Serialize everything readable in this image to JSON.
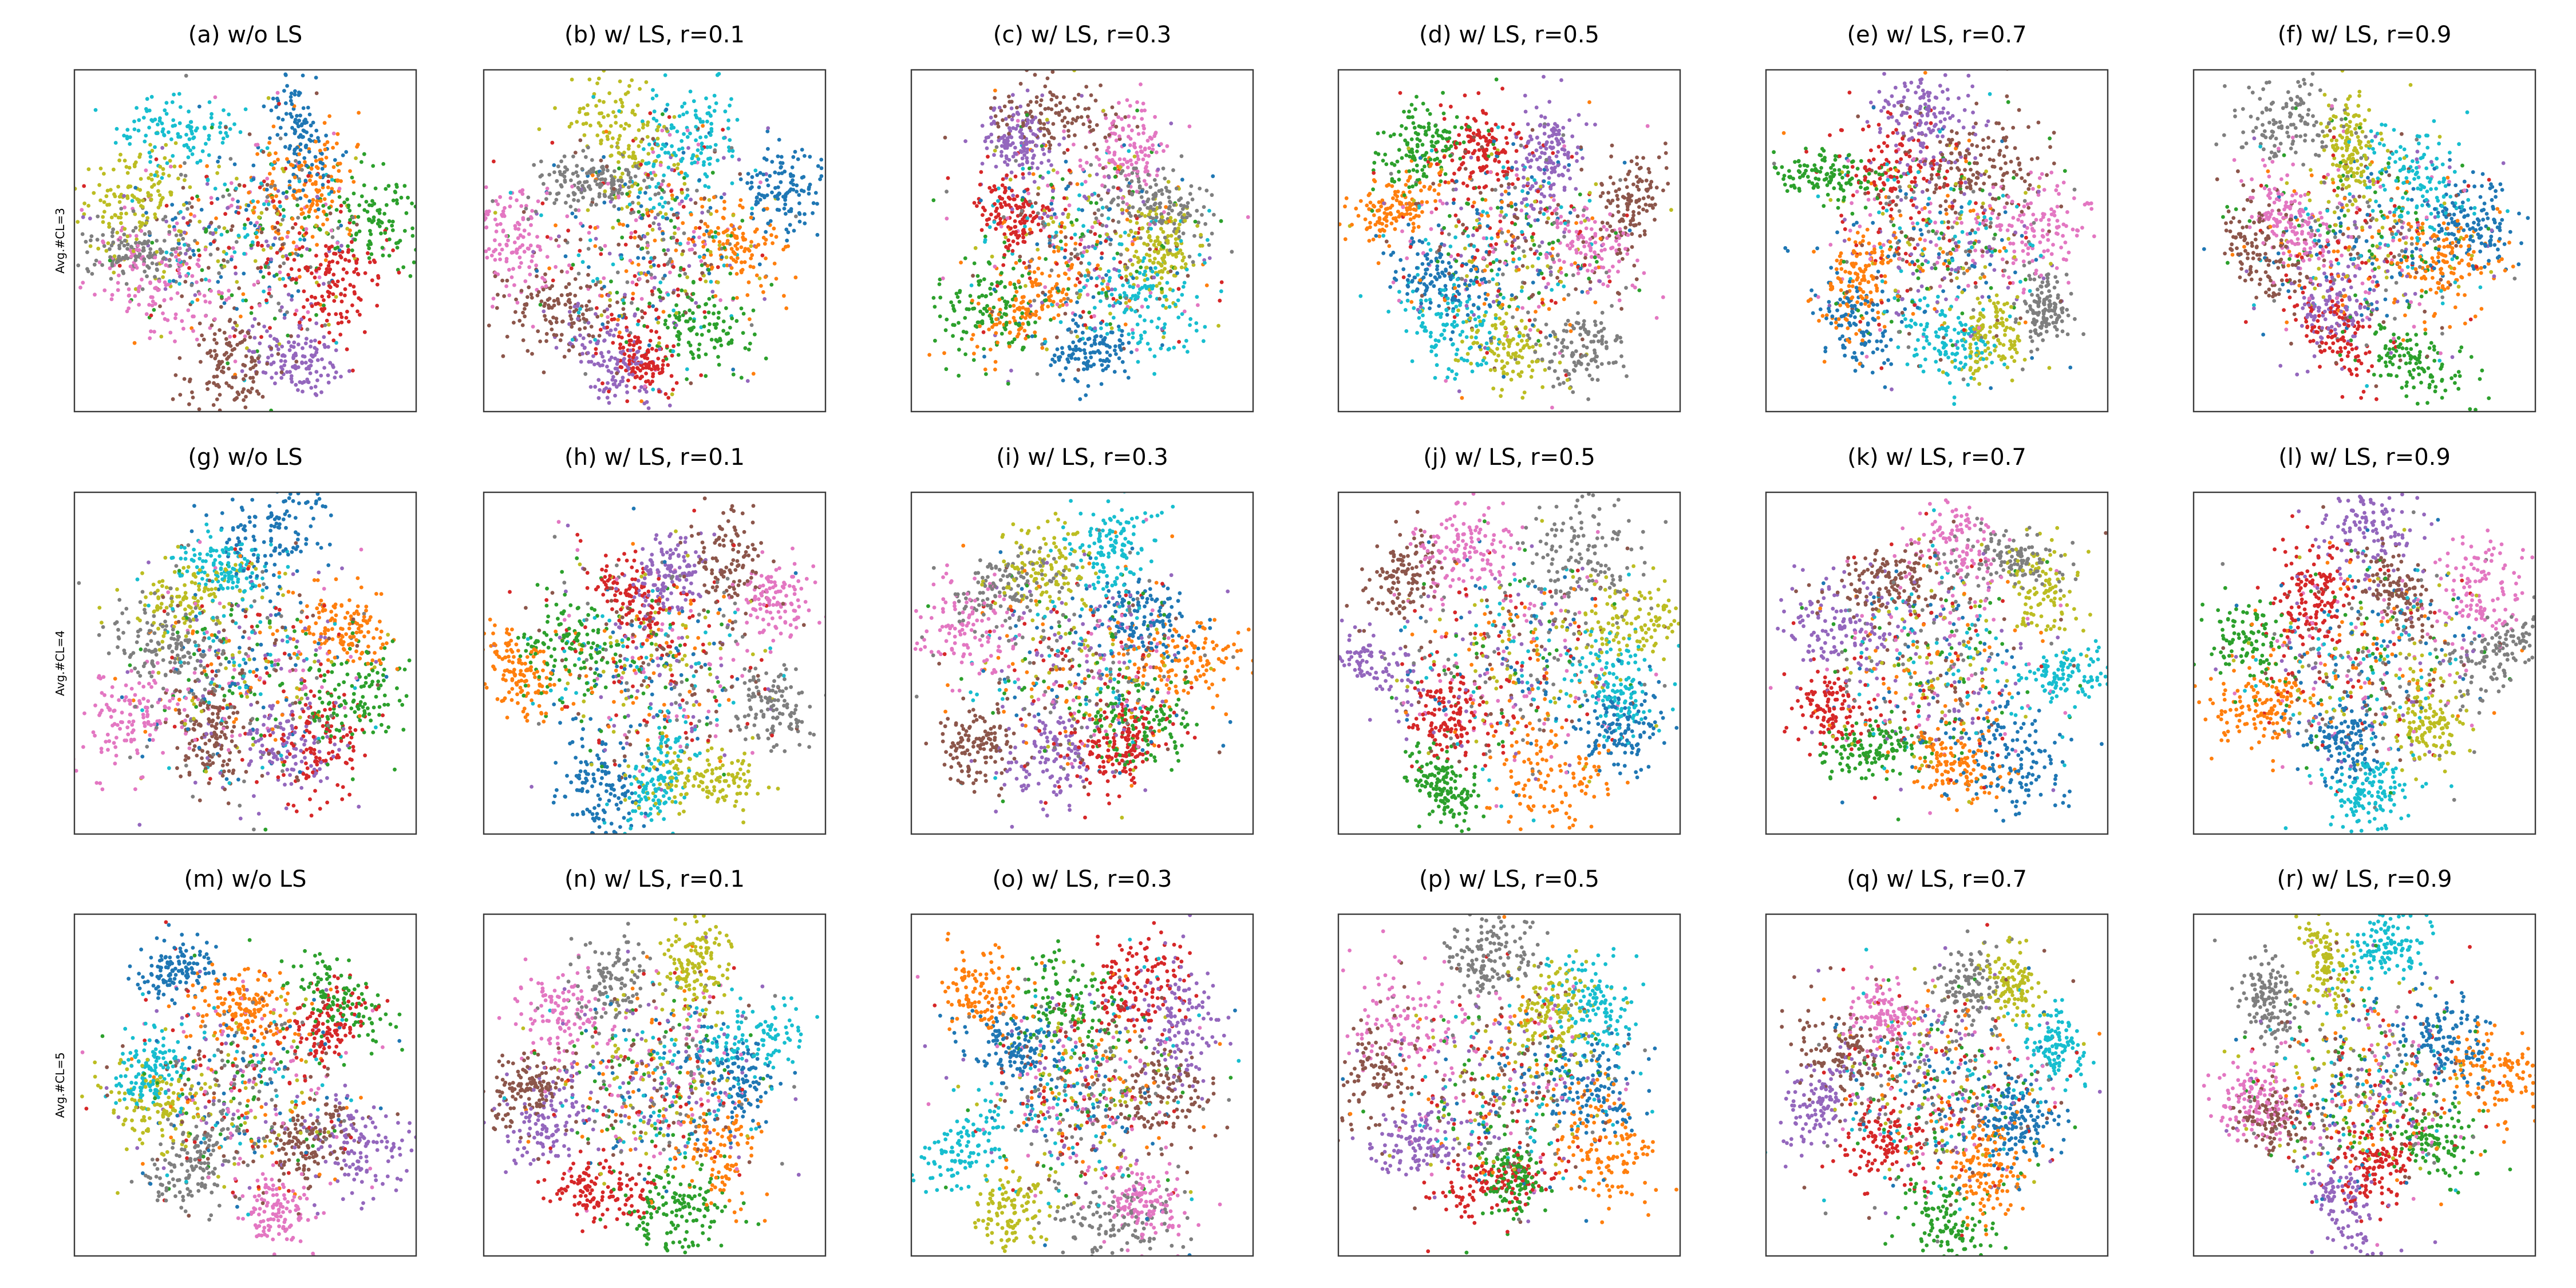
{
  "figure": {
    "row_labels": [
      "Avg.#CL=3",
      "Avg.#CL=4",
      "Avg.#CL=5"
    ],
    "column_settings": [
      "w/o LS",
      "w/ LS, r=0.1",
      "w/ LS, r=0.3",
      "w/ LS, r=0.5",
      "w/ LS, r=0.7",
      "w/ LS, r=0.9"
    ],
    "palette": [
      "#1f77b4",
      "#ff7f0e",
      "#2ca02c",
      "#d62728",
      "#9467bd",
      "#8c564b",
      "#e377c2",
      "#7f7f7f",
      "#bcbd22",
      "#17becf"
    ]
  },
  "chart_data": [
    {
      "type": "scatter",
      "title": "(a) w/o LS",
      "row_label": "Avg.#CL=3",
      "axes": "off",
      "grid": false,
      "legend": "none",
      "n_classes": 10
    },
    {
      "type": "scatter",
      "title": "(b) w/ LS, r=0.1",
      "axes": "off",
      "grid": false,
      "legend": "none",
      "n_classes": 10
    },
    {
      "type": "scatter",
      "title": "(c) w/ LS, r=0.3",
      "axes": "off",
      "grid": false,
      "legend": "none",
      "n_classes": 10
    },
    {
      "type": "scatter",
      "title": "(d) w/ LS, r=0.5",
      "axes": "off",
      "grid": false,
      "legend": "none",
      "n_classes": 10
    },
    {
      "type": "scatter",
      "title": "(e) w/ LS, r=0.7",
      "axes": "off",
      "grid": false,
      "legend": "none",
      "n_classes": 10
    },
    {
      "type": "scatter",
      "title": "(f) w/ LS, r=0.9",
      "axes": "off",
      "grid": false,
      "legend": "none",
      "n_classes": 10
    },
    {
      "type": "scatter",
      "title": "(g) w/o LS",
      "row_label": "Avg.#CL=4",
      "axes": "off",
      "grid": false,
      "legend": "none",
      "n_classes": 10
    },
    {
      "type": "scatter",
      "title": "(h) w/ LS, r=0.1",
      "axes": "off",
      "grid": false,
      "legend": "none",
      "n_classes": 10
    },
    {
      "type": "scatter",
      "title": "(i) w/ LS, r=0.3",
      "axes": "off",
      "grid": false,
      "legend": "none",
      "n_classes": 10
    },
    {
      "type": "scatter",
      "title": "(j) w/ LS, r=0.5",
      "axes": "off",
      "grid": false,
      "legend": "none",
      "n_classes": 10
    },
    {
      "type": "scatter",
      "title": "(k) w/ LS, r=0.7",
      "axes": "off",
      "grid": false,
      "legend": "none",
      "n_classes": 10
    },
    {
      "type": "scatter",
      "title": "(l) w/ LS, r=0.9",
      "axes": "off",
      "grid": false,
      "legend": "none",
      "n_classes": 10
    },
    {
      "type": "scatter",
      "title": "(m) w/o LS",
      "row_label": "Avg.#CL=5",
      "axes": "off",
      "grid": false,
      "legend": "none",
      "n_classes": 10
    },
    {
      "type": "scatter",
      "title": "(n) w/ LS, r=0.1",
      "axes": "off",
      "grid": false,
      "legend": "none",
      "n_classes": 10
    },
    {
      "type": "scatter",
      "title": "(o) w/ LS, r=0.3",
      "axes": "off",
      "grid": false,
      "legend": "none",
      "n_classes": 10
    },
    {
      "type": "scatter",
      "title": "(p) w/ LS, r=0.5",
      "axes": "off",
      "grid": false,
      "legend": "none",
      "n_classes": 10
    },
    {
      "type": "scatter",
      "title": "(q) w/ LS, r=0.7",
      "axes": "off",
      "grid": false,
      "legend": "none",
      "n_classes": 10
    },
    {
      "type": "scatter",
      "title": "(r) w/ LS, r=0.9",
      "axes": "off",
      "grid": false,
      "legend": "none",
      "n_classes": 10
    }
  ]
}
